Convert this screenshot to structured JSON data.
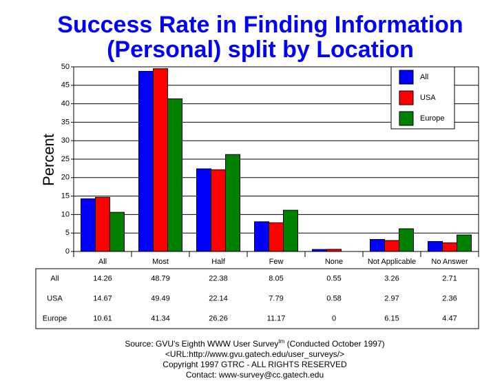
{
  "chart_data": {
    "type": "bar",
    "title_lines": [
      "Success Rate in Finding Information",
      "(Personal) split by Location"
    ],
    "y_label": "Percent",
    "categories": [
      "All",
      "Most",
      "Half",
      "Few",
      "None",
      "Not Applicable",
      "No Answer"
    ],
    "series": [
      {
        "name": "All",
        "color": "#0000ff",
        "values": [
          14.26,
          48.79,
          22.38,
          8.05,
          0.55,
          3.26,
          2.71
        ]
      },
      {
        "name": "USA",
        "color": "#ff0000",
        "values": [
          14.67,
          49.49,
          22.14,
          7.79,
          0.58,
          2.97,
          2.36
        ]
      },
      {
        "name": "Europe",
        "color": "#008000",
        "values": [
          10.61,
          41.34,
          26.26,
          11.17,
          0,
          6.15,
          4.47
        ]
      }
    ],
    "ylim": [
      0,
      50
    ],
    "yticks": [
      0,
      5,
      10,
      15,
      20,
      25,
      30,
      35,
      40,
      45,
      50
    ],
    "grid": true,
    "legend": "top-right"
  },
  "footer": {
    "source": "Source: GVU's Eighth WWW User Survey",
    "trademark": "tm",
    "conducted": " (Conducted October 1997)",
    "url": "<URL:http://www.gvu.gatech.edu/user_surveys/>",
    "copyright": "Copyright 1997 GTRC - ALL RIGHTS RESERVED",
    "contact": "Contact: www-survey@cc.gatech.edu"
  }
}
